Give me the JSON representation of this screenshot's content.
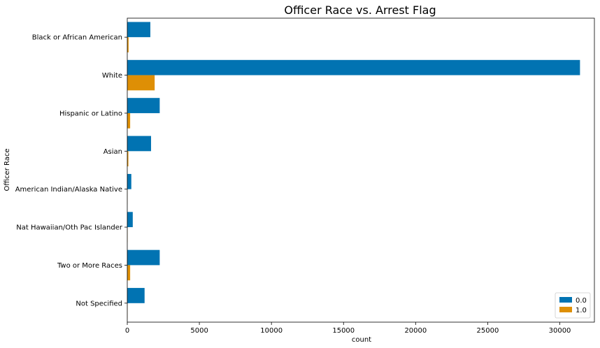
{
  "chart_data": {
    "type": "bar",
    "orientation": "horizontal",
    "title": "Officer Race vs. Arrest Flag",
    "xlabel": "count",
    "ylabel": "Officer Race",
    "categories": [
      "Black or African American",
      "White",
      "Hispanic or Latino",
      "Asian",
      "American Indian/Alaska Native",
      "Nat Hawaiian/Oth Pac Islander",
      "Two or More Races",
      "Not Specified"
    ],
    "series": [
      {
        "name": "0.0",
        "color": "#0173b2",
        "values": [
          1600,
          31400,
          2250,
          1650,
          280,
          380,
          2250,
          1200
        ]
      },
      {
        "name": "1.0",
        "color": "#de8f05",
        "values": [
          90,
          1900,
          200,
          75,
          8,
          15,
          200,
          10
        ]
      }
    ],
    "xlim": [
      0,
      32400
    ],
    "xticks": [
      0,
      5000,
      10000,
      15000,
      20000,
      25000,
      30000
    ],
    "xtick_labels": [
      "0",
      "5000",
      "10000",
      "15000",
      "20000",
      "25000",
      "30000"
    ],
    "grid": false,
    "legend_position": "lower-right"
  }
}
